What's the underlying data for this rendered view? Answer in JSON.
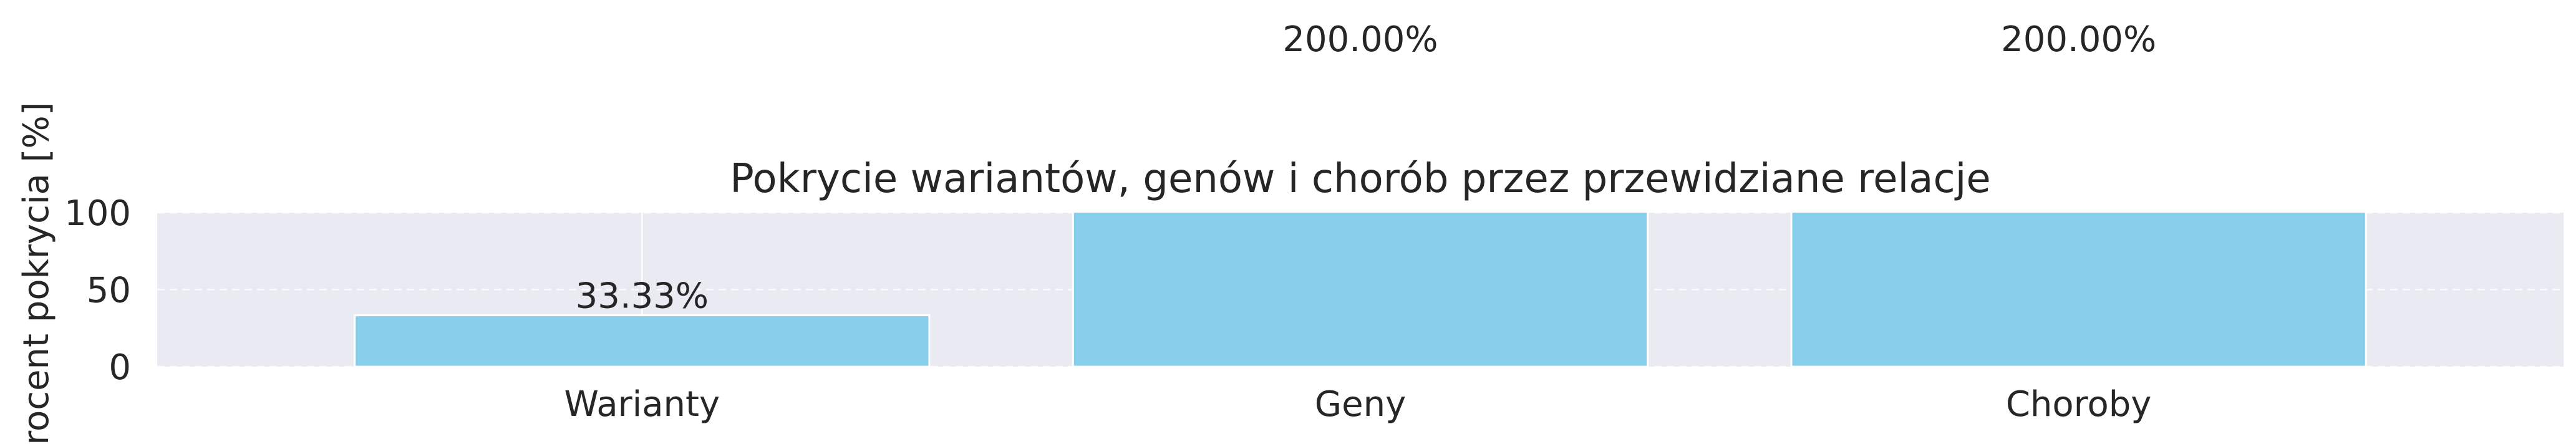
{
  "chart_data": {
    "type": "bar",
    "title": "Pokrycie wariantów, genów i chorób przez przewidziane relacje",
    "xlabel": "",
    "ylabel": "Procent pokrycia [%]",
    "categories": [
      "Warianty",
      "Geny",
      "Choroby"
    ],
    "values": [
      33.33,
      200.0,
      200.0
    ],
    "data_labels": [
      "33.33%",
      "200.00%",
      "200.00%"
    ],
    "ylim": [
      0,
      100
    ],
    "yticks": [
      0,
      50,
      100
    ],
    "grid": true,
    "bar_color": "#87ceeb",
    "plot_background": "#eaeaf2"
  }
}
